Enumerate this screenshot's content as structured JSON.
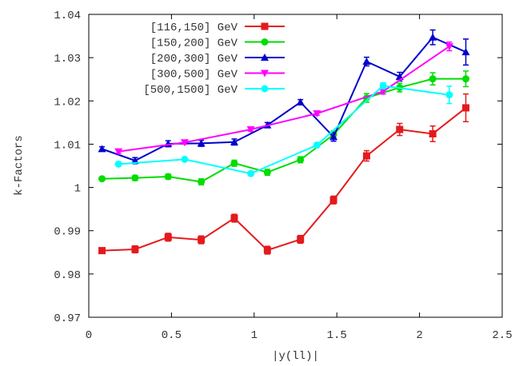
{
  "chart_data": {
    "type": "line",
    "title": "",
    "xlabel": "|y(ll)|",
    "ylabel": "k-Factors",
    "xlim": [
      0,
      2.5
    ],
    "ylim": [
      0.97,
      1.04
    ],
    "xticks": [
      "0",
      "0.5",
      "1",
      "1.5",
      "2",
      "2.5"
    ],
    "xtick_values": [
      0,
      0.5,
      1,
      1.5,
      2,
      2.5
    ],
    "yticks": [
      "0.97",
      "0.98",
      "0.99",
      "1",
      "1.01",
      "1.02",
      "1.03",
      "1.04"
    ],
    "ytick_values": [
      0.97,
      0.98,
      0.99,
      1.0,
      1.01,
      1.02,
      1.03,
      1.04
    ],
    "grid": false,
    "legend_position": "top-left",
    "error_bars": true,
    "series": [
      {
        "name": "[116,150] GeV",
        "color": "#e41a1c",
        "marker": "square",
        "x": [
          0.08,
          0.28,
          0.48,
          0.68,
          0.88,
          1.08,
          1.28,
          1.48,
          1.68,
          1.88,
          2.08,
          2.28
        ],
        "y": [
          0.9854,
          0.9857,
          0.9885,
          0.9879,
          0.9929,
          0.9855,
          0.988,
          0.9971,
          1.0073,
          1.0134,
          1.0124,
          1.0184
        ],
        "err": [
          0.0006,
          0.0008,
          0.0009,
          0.0009,
          0.0009,
          0.0009,
          0.0009,
          0.0009,
          0.0012,
          0.0014,
          0.0018,
          0.0032
        ]
      },
      {
        "name": "[150,200] GeV",
        "color": "#00dd00",
        "marker": "circle",
        "x": [
          0.08,
          0.28,
          0.48,
          0.68,
          0.88,
          1.08,
          1.28,
          1.48,
          1.68,
          1.88,
          2.08,
          2.28
        ],
        "y": [
          1.002,
          1.0022,
          1.0025,
          1.0013,
          1.0056,
          1.0035,
          1.0064,
          1.0122,
          1.0207,
          1.0231,
          1.0251,
          1.0251
        ],
        "err": [
          0.0004,
          0.0006,
          0.0006,
          0.0007,
          0.0007,
          0.0007,
          0.0007,
          0.0009,
          0.001,
          0.001,
          0.0014,
          0.0018
        ]
      },
      {
        "name": "[200,300] GeV",
        "color": "#0000cc",
        "marker": "triangle-up",
        "x": [
          0.08,
          0.28,
          0.48,
          0.68,
          0.88,
          1.08,
          1.28,
          1.48,
          1.68,
          1.88,
          2.08,
          2.28
        ],
        "y": [
          1.0089,
          1.0062,
          1.0101,
          1.0102,
          1.0105,
          1.0144,
          1.0197,
          1.0117,
          1.0291,
          1.0256,
          1.0347,
          1.0313
        ],
        "err": [
          0.0005,
          0.0007,
          0.0007,
          0.0007,
          0.0007,
          0.0006,
          0.0006,
          0.001,
          0.001,
          0.001,
          0.0017,
          0.003
        ]
      },
      {
        "name": "[300,500] GeV",
        "color": "#ff00ff",
        "marker": "triangle-down",
        "x": [
          0.18,
          0.58,
          0.98,
          1.38,
          1.78,
          2.18
        ],
        "y": [
          1.0083,
          1.0104,
          1.0134,
          1.0171,
          1.0222,
          1.0326
        ],
        "err": [
          0.0004,
          0.0004,
          0.0004,
          0.0004,
          0.0006,
          0.001
        ]
      },
      {
        "name": "[500,1500] GeV",
        "color": "#00ffff",
        "marker": "circle",
        "x": [
          0.18,
          0.58,
          0.98,
          1.38,
          1.78,
          2.18
        ],
        "y": [
          1.0054,
          1.0065,
          1.0032,
          1.0098,
          1.0235,
          1.0214
        ],
        "err": [
          0.0003,
          0.0003,
          0.0004,
          0.0005,
          0.0007,
          0.002
        ]
      }
    ]
  }
}
